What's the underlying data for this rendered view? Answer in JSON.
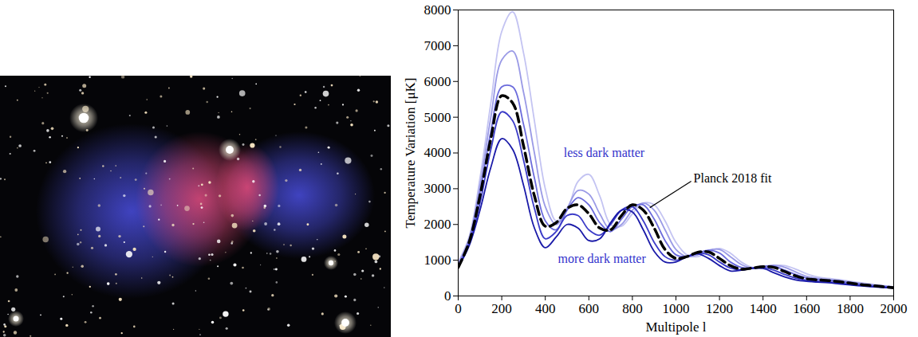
{
  "chart_data": {
    "type": "line",
    "x_label": "Multipole l",
    "y_label": "Temperature Variation [μK]",
    "xlim": [
      0,
      2000
    ],
    "xticks": [
      0,
      200,
      400,
      600,
      800,
      1000,
      1200,
      1400,
      1600,
      1800,
      2000
    ],
    "ylim": [
      0,
      8000
    ],
    "yticks": [
      0,
      1000,
      2000,
      3000,
      4000,
      5000,
      6000,
      7000,
      8000
    ],
    "grid": false,
    "x": [
      0,
      50,
      100,
      150,
      200,
      250,
      300,
      350,
      400,
      450,
      500,
      550,
      600,
      650,
      700,
      750,
      800,
      850,
      900,
      950,
      1000,
      1050,
      1100,
      1150,
      1200,
      1250,
      1300,
      1350,
      1400,
      1450,
      1500,
      1550,
      1600,
      1650,
      1700,
      1750,
      1800,
      1850,
      1900,
      1950,
      2000
    ],
    "series": [
      {
        "color": "#c4c4f2",
        "line_style": "solid",
        "values": [
          950,
          1650,
          3300,
          5400,
          7400,
          7950,
          6800,
          4900,
          3000,
          2100,
          2400,
          3200,
          3400,
          2800,
          2000,
          1950,
          2300,
          2600,
          2550,
          2100,
          1500,
          1150,
          1100,
          1250,
          1330,
          1200,
          950,
          800,
          800,
          850,
          850,
          750,
          620,
          530,
          490,
          460,
          410,
          370,
          330,
          290,
          260
        ]
      },
      {
        "color": "#9a9ae6",
        "line_style": "solid",
        "values": [
          900,
          1600,
          3100,
          5000,
          6600,
          6850,
          5700,
          4000,
          2500,
          2000,
          2450,
          2950,
          2850,
          2300,
          1850,
          2000,
          2400,
          2600,
          2400,
          1850,
          1300,
          1100,
          1150,
          1280,
          1300,
          1100,
          880,
          780,
          820,
          860,
          800,
          670,
          550,
          490,
          460,
          430,
          390,
          350,
          310,
          280,
          250
        ]
      },
      {
        "color": "#6b6bdc",
        "line_style": "solid",
        "values": [
          850,
          1550,
          2900,
          4600,
          5850,
          5850,
          4800,
          3300,
          2100,
          1850,
          2400,
          2750,
          2550,
          2050,
          1800,
          2150,
          2500,
          2550,
          2150,
          1550,
          1150,
          1100,
          1200,
          1280,
          1200,
          950,
          800,
          780,
          830,
          830,
          720,
          600,
          500,
          460,
          440,
          410,
          370,
          330,
          300,
          270,
          240
        ]
      },
      {
        "color": "#3c3cc8",
        "line_style": "solid",
        "values": [
          800,
          1450,
          2600,
          4100,
          5150,
          4900,
          3800,
          2450,
          1600,
          1800,
          2250,
          2250,
          1850,
          1700,
          2000,
          2400,
          2500,
          2100,
          1500,
          1100,
          1000,
          1100,
          1200,
          1150,
          950,
          780,
          730,
          780,
          800,
          720,
          600,
          500,
          440,
          410,
          390,
          360,
          330,
          300,
          270,
          250,
          230
        ]
      },
      {
        "color": "#1a1aa8",
        "line_style": "solid",
        "values": [
          800,
          1400,
          2400,
          3600,
          4400,
          4100,
          3100,
          1900,
          1350,
          1650,
          2000,
          1900,
          1550,
          1600,
          2050,
          2400,
          2350,
          1850,
          1250,
          950,
          950,
          1100,
          1180,
          1050,
          850,
          700,
          720,
          770,
          770,
          650,
          530,
          450,
          410,
          390,
          370,
          340,
          310,
          280,
          260,
          240,
          220
        ]
      },
      {
        "color": "#000000",
        "line_style": "dashed",
        "values": [
          800,
          1500,
          2800,
          4400,
          5600,
          5400,
          4200,
          2800,
          1950,
          2050,
          2450,
          2550,
          2300,
          1900,
          1850,
          2250,
          2550,
          2400,
          1900,
          1300,
          1050,
          1100,
          1220,
          1230,
          1050,
          850,
          750,
          780,
          820,
          800,
          680,
          560,
          480,
          450,
          430,
          400,
          360,
          320,
          290,
          260,
          230
        ]
      }
    ],
    "annotations": [
      {
        "text": "less dark matter",
        "x": 670,
        "y": 4000,
        "color": "#3333cc"
      },
      {
        "text": "more dark matter",
        "x": 660,
        "y": 1050,
        "color": "#3333cc"
      },
      {
        "text": "Planck 2018 fit",
        "x": 1070,
        "y": 3300,
        "color": "#000000",
        "arrow_to": [
          880,
          2560
        ]
      }
    ]
  }
}
